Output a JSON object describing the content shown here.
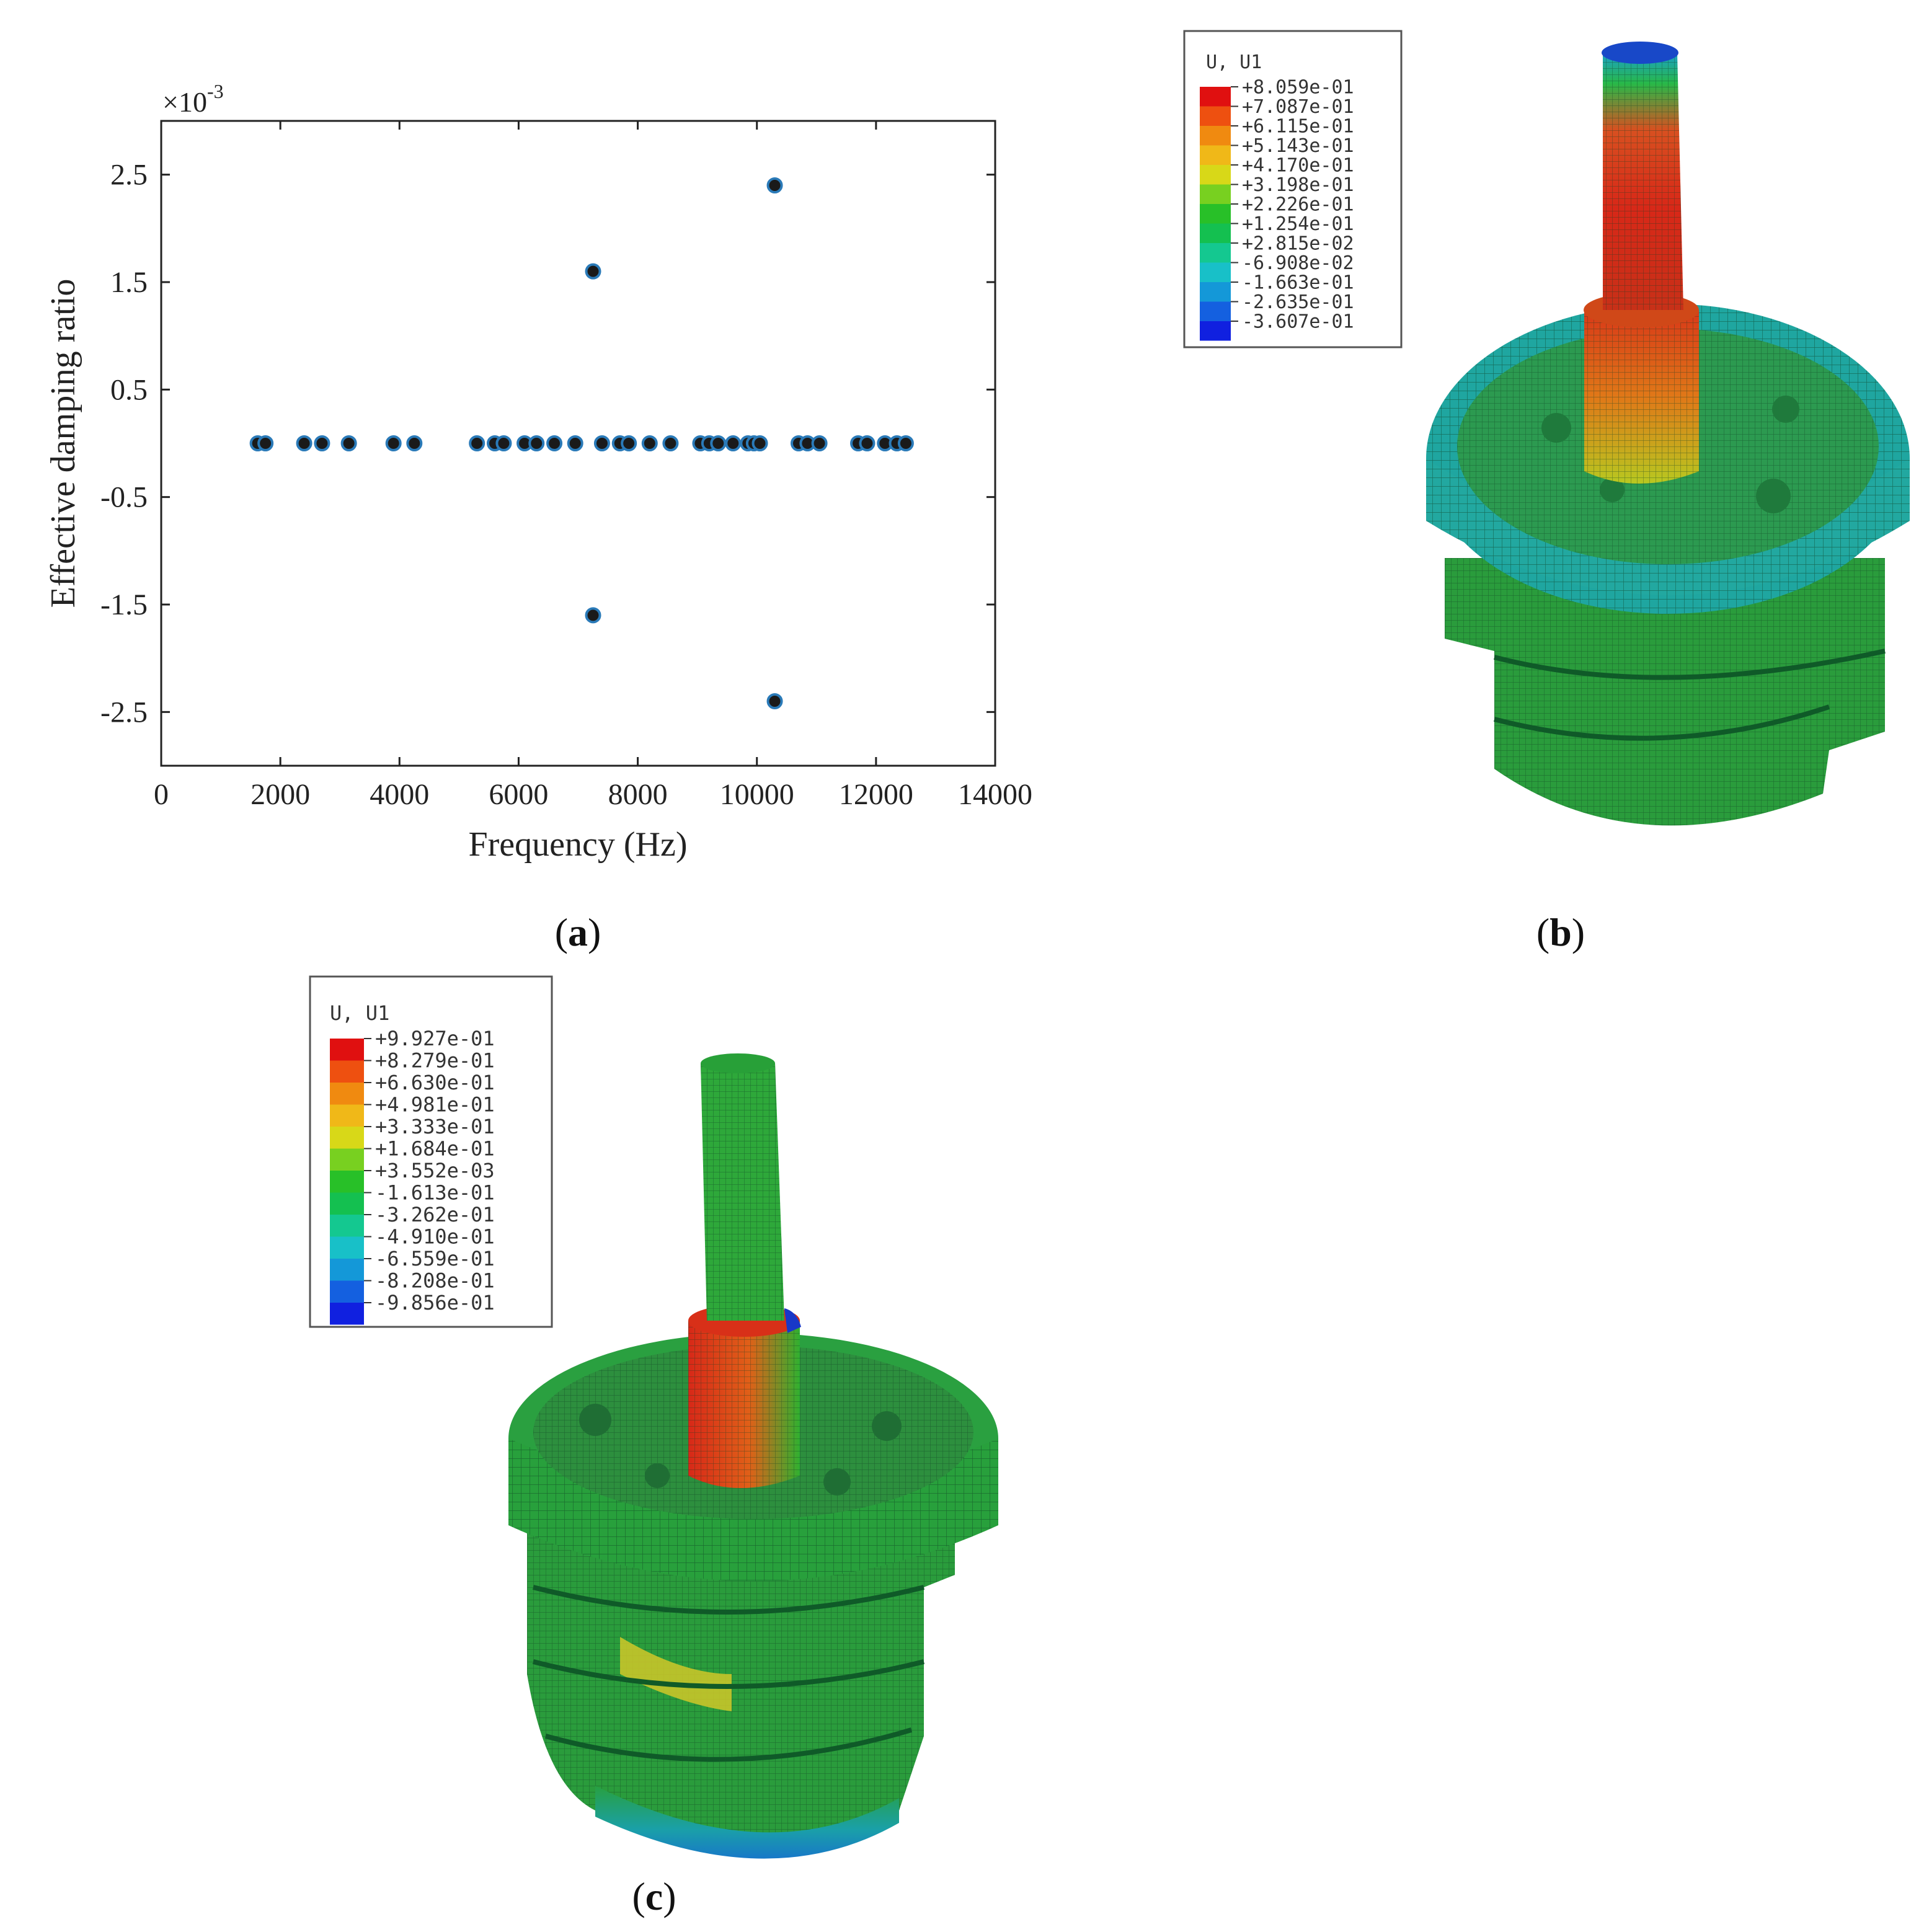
{
  "panels": {
    "a": {
      "label_open": "(",
      "label_letter": "a",
      "label_close": ")"
    },
    "b": {
      "label_open": "(",
      "label_letter": "b",
      "label_close": ")"
    },
    "c": {
      "label_open": "(",
      "label_letter": "c",
      "label_close": ")"
    }
  },
  "chart_data": {
    "type": "scatter",
    "xlabel": "Frequency (Hz)",
    "ylabel": "Effective damping ratio",
    "y_multiplier": "×10",
    "y_multiplier_exp": "-3",
    "xlim": [
      0,
      14000
    ],
    "ylim": [
      -3.0,
      3.0
    ],
    "x_ticks": [
      0,
      2000,
      4000,
      6000,
      8000,
      10000,
      12000,
      14000
    ],
    "y_ticks": [
      2.5,
      1.5,
      0.5,
      -0.5,
      -1.5,
      -2.5
    ],
    "y_tick_labels": [
      "2.5",
      "1.5",
      "0.5",
      "-0.5",
      "-1.5",
      "-2.5"
    ],
    "grid": false,
    "marker_color": "#1a1a1a",
    "marker_edge": "#2a7ab8",
    "points": [
      {
        "x": 1620,
        "y": 0
      },
      {
        "x": 1750,
        "y": 0
      },
      {
        "x": 2400,
        "y": 0
      },
      {
        "x": 2700,
        "y": 0
      },
      {
        "x": 3150,
        "y": 0
      },
      {
        "x": 3900,
        "y": 0
      },
      {
        "x": 4250,
        "y": 0
      },
      {
        "x": 5300,
        "y": 0
      },
      {
        "x": 5600,
        "y": 0
      },
      {
        "x": 5750,
        "y": 0
      },
      {
        "x": 6100,
        "y": 0
      },
      {
        "x": 6300,
        "y": 0
      },
      {
        "x": 6600,
        "y": 0
      },
      {
        "x": 6950,
        "y": 0
      },
      {
        "x": 7250,
        "y": 1.6
      },
      {
        "x": 7250,
        "y": -1.6
      },
      {
        "x": 7400,
        "y": 0
      },
      {
        "x": 7700,
        "y": 0
      },
      {
        "x": 7850,
        "y": 0
      },
      {
        "x": 8200,
        "y": 0
      },
      {
        "x": 8550,
        "y": 0
      },
      {
        "x": 9050,
        "y": 0
      },
      {
        "x": 9200,
        "y": 0
      },
      {
        "x": 9350,
        "y": 0
      },
      {
        "x": 9600,
        "y": 0
      },
      {
        "x": 9850,
        "y": 0
      },
      {
        "x": 9950,
        "y": 0
      },
      {
        "x": 10050,
        "y": 0
      },
      {
        "x": 10300,
        "y": 2.4
      },
      {
        "x": 10300,
        "y": -2.4
      },
      {
        "x": 10700,
        "y": 0
      },
      {
        "x": 10850,
        "y": 0
      },
      {
        "x": 11050,
        "y": 0
      },
      {
        "x": 11700,
        "y": 0
      },
      {
        "x": 11850,
        "y": 0
      },
      {
        "x": 12150,
        "y": 0
      },
      {
        "x": 12350,
        "y": 0
      },
      {
        "x": 12500,
        "y": 0
      }
    ]
  },
  "legend_b": {
    "title": "U, U1",
    "values": [
      "+8.059e-01",
      "+7.087e-01",
      "+6.115e-01",
      "+5.143e-01",
      "+4.170e-01",
      "+3.198e-01",
      "+2.226e-01",
      "+1.254e-01",
      "+2.815e-02",
      "-6.908e-02",
      "-1.663e-01",
      "-2.635e-01",
      "-3.607e-01"
    ],
    "colors": [
      "#e01010",
      "#ee5010",
      "#f08a10",
      "#f0b818",
      "#d8d818",
      "#78d020",
      "#28c028",
      "#14c050",
      "#14c890",
      "#18c0c8",
      "#1498d8",
      "#1460e0",
      "#1020e0"
    ]
  },
  "legend_c": {
    "title": "U, U1",
    "values": [
      "+9.927e-01",
      "+8.279e-01",
      "+6.630e-01",
      "+4.981e-01",
      "+3.333e-01",
      "+1.684e-01",
      "+3.552e-03",
      "-1.613e-01",
      "-3.262e-01",
      "-4.910e-01",
      "-6.559e-01",
      "-8.208e-01",
      "-9.856e-01"
    ],
    "colors": [
      "#e01010",
      "#ee5010",
      "#f08a10",
      "#f0b818",
      "#d8d818",
      "#78d020",
      "#28c028",
      "#14c050",
      "#14c890",
      "#18c0c8",
      "#1498d8",
      "#1460e0",
      "#1020e0"
    ]
  }
}
